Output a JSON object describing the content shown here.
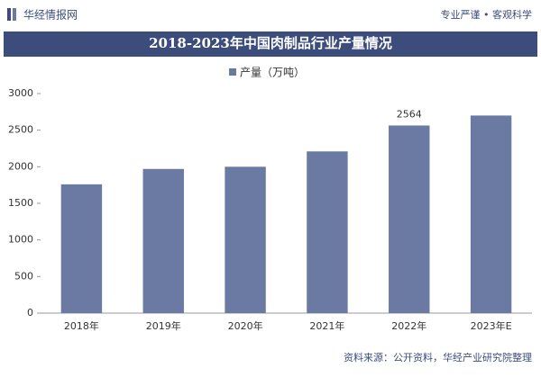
{
  "header": {
    "brand": "华经情报网",
    "slogan": "专业严谨 • 客观科学"
  },
  "chart_data": {
    "type": "bar",
    "title": "2018-2023年中国肉制品行业产量情况",
    "categories": [
      "2018年",
      "2019年",
      "2020年",
      "2021年",
      "2022年",
      "2023年E"
    ],
    "series": [
      {
        "name": "产量（万吨）",
        "color": "#6a7aa3",
        "values": [
          1760,
          1970,
          2000,
          2210,
          2564,
          2700
        ]
      }
    ],
    "value_labels": [
      null,
      null,
      null,
      null,
      "2564",
      null
    ],
    "ylim": [
      0,
      3000
    ],
    "yticks": [
      0,
      500,
      1000,
      1500,
      2000,
      2500,
      3000
    ],
    "grid": false,
    "source": "资料来源：公开资料，华经产业研究院整理"
  }
}
